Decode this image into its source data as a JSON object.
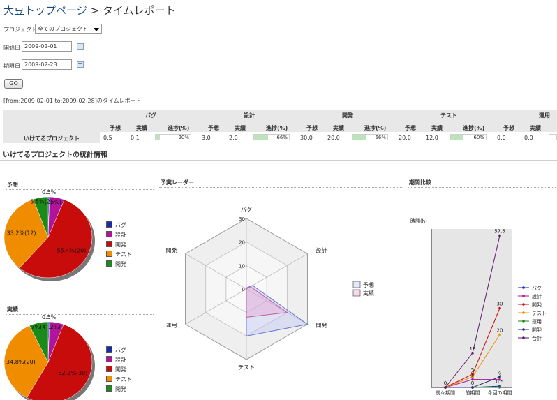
{
  "breadcrumb": {
    "home": "大豆トップページ",
    "sep": ">",
    "current": "タイムレポート"
  },
  "form": {
    "project_label": "プロジェクト",
    "project_value": "全てのプロジェクト",
    "start_label": "開始日",
    "start_value": "2009-02-01",
    "end_label": "期限日",
    "end_value": "2009-02-28",
    "go_label": "GO"
  },
  "range_text": "[from:2009-02-01 to:2009-02-28]のタイムレポート",
  "table": {
    "categories": [
      "バグ",
      "設計",
      "開発",
      "テスト",
      "運用"
    ],
    "sub_headers": [
      "予想",
      "実績",
      "進捗(%)"
    ],
    "row_label": "いけてるプロジェクト",
    "rows": [
      {
        "plan": "0.5",
        "actual": "0.1",
        "progress": 20,
        "progress_text": "20%"
      },
      {
        "plan": "3.0",
        "actual": "2.0",
        "progress": 66,
        "progress_text": "66%"
      },
      {
        "plan": "30.0",
        "actual": "20.0",
        "progress": 66,
        "progress_text": "66%"
      },
      {
        "plan": "20.0",
        "actual": "12.0",
        "progress": 60,
        "progress_text": "60%"
      },
      {
        "plan": "0.0",
        "actual": "0.0",
        "progress": 0,
        "progress_text": ""
      }
    ]
  },
  "section_title": "いけてるプロジェクトの統計情報",
  "colors": {
    "bug": "#1a2aa8",
    "design": "#b0149a",
    "dev": "#c80c0c",
    "test": "#f08c00",
    "ops": "#1a8a1a",
    "other": "#2a2a80",
    "total": "#5a1a6a"
  },
  "chart_data": [
    {
      "type": "pie",
      "title": "予想",
      "slices": [
        {
          "label": "バグ",
          "value": 0.5,
          "text": "0.5%"
        },
        {
          "label": "設計",
          "value": 5.5,
          "text": "5.5%(2)"
        },
        {
          "label": "開発",
          "value": 55.4,
          "text": "55.4%(20)"
        },
        {
          "label": "テスト",
          "value": 33.2,
          "text": "33.2%(12)"
        },
        {
          "label": "開発",
          "value": 5.5,
          "text": "5.5%(2)"
        }
      ],
      "legend": [
        "バグ",
        "設計",
        "開発",
        "テスト",
        "開発"
      ]
    },
    {
      "type": "pie",
      "title": "実績",
      "slices": [
        {
          "label": "バグ",
          "value": 0.5,
          "text": "0.5%"
        },
        {
          "label": "設計",
          "value": 5.2,
          "text": "5.2%(3)"
        },
        {
          "label": "開発",
          "value": 52.2,
          "text": "52.2%(30)"
        },
        {
          "label": "テスト",
          "value": 34.8,
          "text": "34.8%(20)"
        },
        {
          "label": "開発",
          "value": 7.0,
          "text": "7%(4)"
        }
      ],
      "legend": [
        "バグ",
        "設計",
        "開発",
        "テスト",
        "開発"
      ]
    },
    {
      "type": "radar",
      "title": "予実レーダー",
      "axes": [
        "バグ",
        "設計",
        "開発",
        "テスト",
        "運用",
        "開発"
      ],
      "rmax": 30,
      "ticks": [
        0,
        10,
        20,
        30
      ],
      "series": [
        {
          "name": "予想",
          "values": [
            0.5,
            3,
            30,
            20,
            0,
            0
          ]
        },
        {
          "name": "実績",
          "values": [
            0.1,
            2,
            20,
            12,
            0,
            0
          ]
        }
      ]
    },
    {
      "type": "line",
      "title": "期間比較",
      "ylabel": "時間(h)",
      "categories": [
        "前々期間",
        "前期間",
        "今回の期間"
      ],
      "ylim": [
        0,
        60
      ],
      "series": [
        {
          "name": "バグ",
          "values": [
            0,
            0,
            0.5
          ]
        },
        {
          "name": "設計",
          "values": [
            0,
            3,
            3
          ]
        },
        {
          "name": "開発",
          "values": [
            0,
            5,
            30
          ]
        },
        {
          "name": "テスト",
          "values": [
            0,
            4,
            20
          ]
        },
        {
          "name": "運用",
          "values": [
            0,
            0,
            0
          ]
        },
        {
          "name": "開発",
          "values": [
            0,
            0,
            4
          ]
        },
        {
          "name": "合計",
          "values": [
            0,
            13,
            57.5
          ]
        }
      ],
      "point_labels": [
        {
          "text": "0",
          "cat": 0,
          "y": 0
        },
        {
          "text": "13",
          "cat": 1,
          "y": 13
        },
        {
          "text": "5",
          "cat": 1,
          "y": 5
        },
        {
          "text": "4",
          "cat": 1,
          "y": 4
        },
        {
          "text": "3",
          "cat": 1,
          "y": 3
        },
        {
          "text": "0",
          "cat": 1,
          "y": 0
        },
        {
          "text": "57.5",
          "cat": 2,
          "y": 57.5
        },
        {
          "text": "30",
          "cat": 2,
          "y": 30
        },
        {
          "text": "20",
          "cat": 2,
          "y": 20
        },
        {
          "text": "4",
          "cat": 2,
          "y": 4
        },
        {
          "text": "3",
          "cat": 2,
          "y": 3
        },
        {
          "text": "0.5",
          "cat": 2,
          "y": 0.5
        }
      ]
    }
  ]
}
